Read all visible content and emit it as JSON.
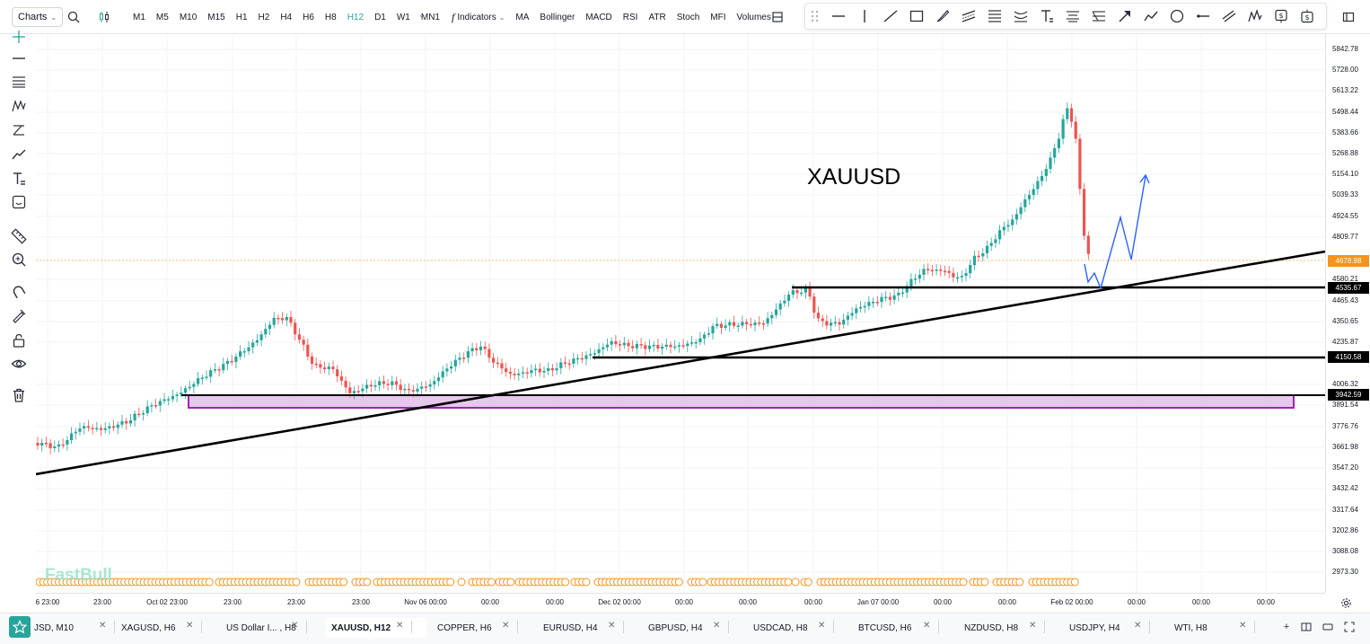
{
  "toolbar": {
    "charts_label": "Charts",
    "timeframes": [
      "M1",
      "M5",
      "M10",
      "M15",
      "H1",
      "H2",
      "H4",
      "H6",
      "H8",
      "H12",
      "D1",
      "W1",
      "MN1"
    ],
    "active_timeframe": "H12",
    "indicators_label": "Indicators",
    "indicator_items": [
      "MA",
      "Bollinger",
      "MACD",
      "RSI",
      "ATR",
      "Stoch",
      "MFI",
      "Volumes"
    ]
  },
  "chart": {
    "symbol_annotation": "XAUUSD",
    "watermark": "FastBull",
    "price_labels": [
      "5842.78",
      "5728.00",
      "5613.22",
      "5498.44",
      "5383.66",
      "5268.88",
      "5154.10",
      "5039.33",
      "4924.55",
      "4809.77",
      "4580.21",
      "4465.43",
      "4350.65",
      "4235.87",
      "4006.32",
      "3891.54",
      "3776.76",
      "3661.98",
      "3547.20",
      "3432.42",
      "3317.64",
      "3202.86",
      "3088.08",
      "2973.30"
    ],
    "last_price": "4678.98",
    "level_tags": [
      "4535.67",
      "4150.58",
      "3942.59"
    ],
    "time_labels": [
      "6 23:00",
      "23:00",
      "Oct 02 23:00",
      "23:00",
      "23:00",
      "23:00",
      "Nov 06 00:00",
      "00:00",
      "00:00",
      "Dec 02 00:00",
      "00:00",
      "00:00",
      "00:00",
      "Jan 07 00:00",
      "00:00",
      "00:00",
      "Feb 02 00:00",
      "00:00",
      "00:00",
      "00:00"
    ],
    "colors": {
      "up": "#26a69a",
      "down": "#ef5350",
      "last_price": "#f7931a",
      "zone": "#9c27b0",
      "projection": "#2962ff"
    }
  },
  "tabs": [
    {
      "label": "JSD, M10",
      "active": false
    },
    {
      "label": "XAGUSD, H6",
      "active": false
    },
    {
      "label": "US Dollar I... , H8",
      "active": false
    },
    {
      "label": "XAUUSD, H12",
      "active": true
    },
    {
      "label": "COPPER, H6",
      "active": false
    },
    {
      "label": "EURUSD, H4",
      "active": false
    },
    {
      "label": "GBPUSD, H4",
      "active": false
    },
    {
      "label": "USDCAD, H8",
      "active": false
    },
    {
      "label": "BTCUSD, H6",
      "active": false
    },
    {
      "label": "NZDUSD, H8",
      "active": false
    },
    {
      "label": "USDJPY, H4",
      "active": false
    },
    {
      "label": "WTI, H8",
      "active": false
    }
  ]
}
